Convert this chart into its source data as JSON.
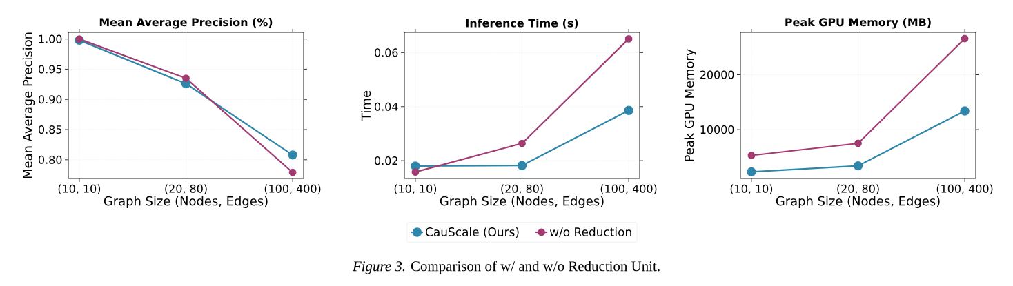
{
  "chart_data": [
    {
      "type": "line",
      "title": "Mean Average Precision (%)",
      "xlabel": "Graph Size (Nodes, Edges)",
      "ylabel": "Mean Average Precision",
      "categories": [
        "(10, 10)",
        "(20, 80)",
        "(100, 400)"
      ],
      "series": [
        {
          "color": "#2e86ab",
          "values": [
            0.998,
            0.926,
            0.808
          ]
        },
        {
          "color": "#a23b72",
          "values": [
            1.0,
            0.935,
            0.779
          ]
        }
      ],
      "ylim": [
        0.769,
        1.011
      ],
      "yticks": [
        {
          "value": 0.8,
          "label": "0.80"
        },
        0.85,
        {
          "value": 0.9,
          "label": "0.90"
        },
        0.95,
        {
          "value": 1.0,
          "label": "1.00"
        }
      ],
      "grid": true,
      "marker": "circle",
      "line_style": "solid"
    },
    {
      "type": "line",
      "title": "Inference Time (s)",
      "xlabel": "Graph Size (Nodes, Edges)",
      "ylabel": "Time",
      "categories": [
        "(10, 10)",
        "(20, 80)",
        "(100, 400)"
      ],
      "series": [
        {
          "name": "CauScale (Ours)",
          "color": "#2e86ab",
          "values": [
            0.018,
            0.0182,
            0.0386
          ]
        },
        {
          "name": "w/o Reduction",
          "color": "#a23b72",
          "values": [
            0.0158,
            0.0264,
            0.0651
          ]
        }
      ],
      "ylim": [
        0.0134,
        0.0675
      ],
      "yticks": [
        0.02,
        0.04,
        0.06
      ],
      "grid": true,
      "marker": "circle",
      "line_style": "solid",
      "legend": "bottom",
      "annotations": [
        "*Figure 3.* Comparison of w/ and w/o Reduction Unit."
      ]
    },
    {
      "type": "line",
      "title": "Peak GPU Memory (MB)",
      "xlabel": "Graph Size (Nodes, Edges)",
      "ylabel": "Peak GPU Memory",
      "categories": [
        "(10, 10)",
        "(20, 80)",
        "(100, 400)"
      ],
      "series": [
        {
          "color": "#2e86ab",
          "values": [
            2300,
            3400,
            13400
          ]
        },
        {
          "color": "#a23b72",
          "values": [
            5300,
            7500,
            26600
          ]
        }
      ],
      "ylim": [
        1090,
        27730
      ],
      "yticks": [
        10000,
        20000
      ],
      "grid": true,
      "marker": "circle",
      "line_style": "solid"
    }
  ]
}
